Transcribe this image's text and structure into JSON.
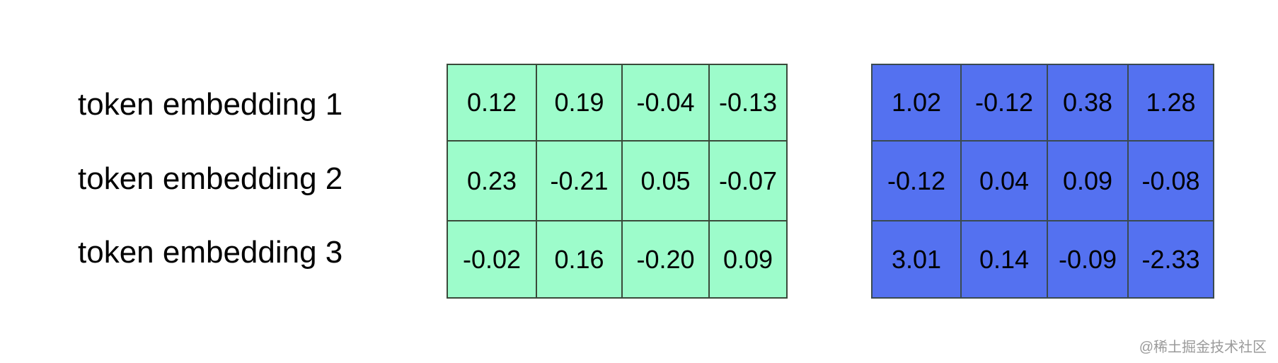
{
  "labels": [
    "token embedding 1",
    "token embedding 2",
    "token embedding 3"
  ],
  "matrix_left": {
    "fill_color": "#9dfccb",
    "rows": [
      [
        "0.12",
        "0.19",
        "-0.04",
        "-0.13"
      ],
      [
        "0.23",
        "-0.21",
        "0.05",
        "-0.07"
      ],
      [
        "-0.02",
        "0.16",
        "-0.20",
        "0.09"
      ]
    ]
  },
  "matrix_right": {
    "fill_color": "#5471f0",
    "rows": [
      [
        "1.02",
        "-0.12",
        "0.38",
        "1.28"
      ],
      [
        "-0.12",
        "0.04",
        "0.09",
        "-0.08"
      ],
      [
        "3.01",
        "0.14",
        "-0.09",
        "-2.33"
      ]
    ]
  },
  "watermark": "@稀土掘金技术社区"
}
